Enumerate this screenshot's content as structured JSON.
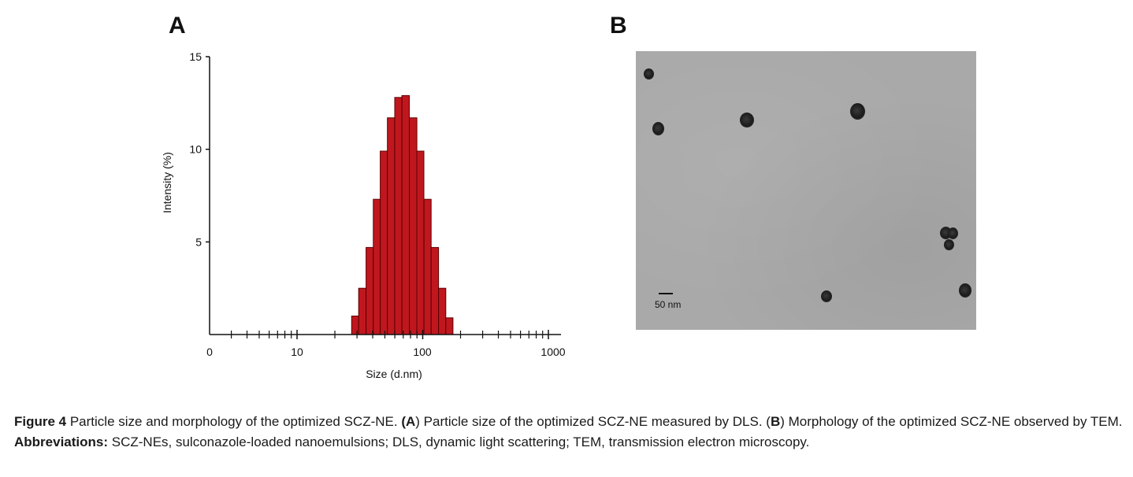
{
  "panels": {
    "a_label": "A",
    "b_label": "B"
  },
  "chart_data": {
    "type": "bar",
    "xlabel": "Size (d.nm)",
    "ylabel": "Intensity (%)",
    "x_scale": "log",
    "x_tick_labels": [
      "0",
      "10",
      "100",
      "1000"
    ],
    "y_ticks": [
      5,
      10,
      15
    ],
    "ylim": [
      0,
      15
    ],
    "bar_color": "#c0171f",
    "bars": [
      {
        "size": 29,
        "intensity": 1.0
      },
      {
        "size": 33,
        "intensity": 2.5
      },
      {
        "size": 38,
        "intensity": 4.7
      },
      {
        "size": 43,
        "intensity": 7.3
      },
      {
        "size": 49,
        "intensity": 9.9
      },
      {
        "size": 56,
        "intensity": 11.7
      },
      {
        "size": 64,
        "intensity": 12.8
      },
      {
        "size": 73,
        "intensity": 12.9
      },
      {
        "size": 84,
        "intensity": 11.7
      },
      {
        "size": 96,
        "intensity": 9.9
      },
      {
        "size": 109,
        "intensity": 7.3
      },
      {
        "size": 125,
        "intensity": 4.7
      },
      {
        "size": 143,
        "intensity": 2.5
      },
      {
        "size": 163,
        "intensity": 0.9
      }
    ]
  },
  "tem": {
    "scale_label": "50 nm",
    "background_color": "#a9a9a9"
  },
  "caption": {
    "figure_label": "Figure 4",
    "text_1": " Particle size and morphology of the optimized SCZ-NE. ",
    "paren_open_a": "(",
    "a_letter": "A",
    "text_2": ") Particle size of the optimized SCZ-NE measured by DLS. (",
    "b_letter": "B",
    "text_3": ") Morphology of the optimized SCZ-NE observed by TEM.",
    "abbrev_label": "Abbreviations:",
    "abbrev_text": " SCZ-NEs, sulconazole-loaded nanoemulsions; DLS, dynamic light scattering; TEM, transmission electron microscopy."
  }
}
